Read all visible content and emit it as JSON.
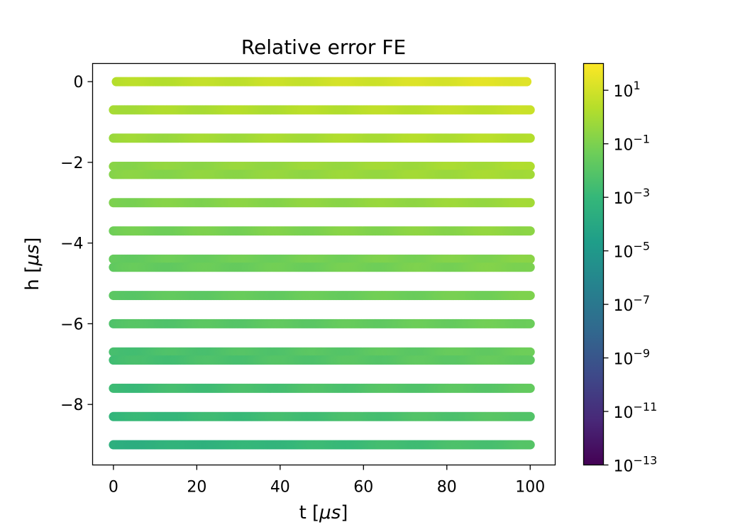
{
  "chart_data": {
    "type": "scatter",
    "title": "Relative error FE",
    "xlabel_main": "t [",
    "xlabel_unit": "μs",
    "xlabel_end": "]",
    "ylabel_main": "h [",
    "ylabel_unit": "μs",
    "ylabel_end": "]",
    "xlim": [
      -5,
      106
    ],
    "ylim": [
      -9.5,
      0.45
    ],
    "x_ticks": [
      0,
      20,
      40,
      60,
      80,
      100
    ],
    "x_tick_labels": [
      "0",
      "20",
      "40",
      "60",
      "80",
      "100"
    ],
    "y_ticks": [
      0,
      -2,
      -4,
      -6,
      -8
    ],
    "y_tick_labels": [
      "0",
      "−2",
      "−4",
      "−6",
      "−8"
    ],
    "x_range": [
      0,
      100
    ],
    "rows": [
      {
        "h": 0.0,
        "t_start": 0.7,
        "t_end": 99.2,
        "log_err_start": 0.3,
        "log_err_end": 1.4
      },
      {
        "h": -0.7,
        "t_start": 0.0,
        "t_end": 100,
        "log_err_start": 0.0,
        "log_err_end": 0.7
      },
      {
        "h": -1.4,
        "t_start": 0.0,
        "t_end": 100,
        "log_err_start": -0.3,
        "log_err_end": 0.4
      },
      {
        "h": -2.1,
        "t_start": 0.0,
        "t_end": 100,
        "log_err_start": -0.7,
        "log_err_end": 0.1
      },
      {
        "h": -2.3,
        "t_start": 0.0,
        "t_end": 100,
        "log_err_start": -0.8,
        "log_err_end": 0.0
      },
      {
        "h": -3.0,
        "t_start": 0.0,
        "t_end": 100,
        "log_err_start": -1.0,
        "log_err_end": -0.2
      },
      {
        "h": -3.7,
        "t_start": 0.0,
        "t_end": 100,
        "log_err_start": -1.3,
        "log_err_end": -0.5
      },
      {
        "h": -4.4,
        "t_start": 0.0,
        "t_end": 100,
        "log_err_start": -1.6,
        "log_err_end": -0.8
      },
      {
        "h": -4.6,
        "t_start": 0.0,
        "t_end": 100,
        "log_err_start": -1.7,
        "log_err_end": -0.9
      },
      {
        "h": -5.3,
        "t_start": 0.0,
        "t_end": 100,
        "log_err_start": -1.9,
        "log_err_end": -1.1
      },
      {
        "h": -6.0,
        "t_start": 0.0,
        "t_end": 100,
        "log_err_start": -2.2,
        "log_err_end": -1.3
      },
      {
        "h": -6.7,
        "t_start": 0.0,
        "t_end": 100,
        "log_err_start": -2.5,
        "log_err_end": -1.5
      },
      {
        "h": -6.9,
        "t_start": 0.0,
        "t_end": 100,
        "log_err_start": -2.6,
        "log_err_end": -1.6
      },
      {
        "h": -7.6,
        "t_start": 0.0,
        "t_end": 100,
        "log_err_start": -2.8,
        "log_err_end": -1.8
      },
      {
        "h": -8.3,
        "t_start": 0.0,
        "t_end": 100,
        "log_err_start": -3.1,
        "log_err_end": -2.0
      },
      {
        "h": -9.0,
        "t_start": 0.0,
        "t_end": 100,
        "log_err_start": -3.6,
        "log_err_end": -2.2
      }
    ],
    "colorbar": {
      "scale": "log",
      "range": [
        -13,
        2
      ],
      "ticks": [
        1,
        -1,
        -3,
        -5,
        -7,
        -9,
        -11,
        -13
      ],
      "colormap": "viridis",
      "colormap_stops": [
        "#440154",
        "#482878",
        "#3e4989",
        "#31688e",
        "#26828e",
        "#1f9e89",
        "#35b779",
        "#6ece58",
        "#b5de2b",
        "#fde725"
      ]
    },
    "grid": false,
    "legend": "none"
  }
}
